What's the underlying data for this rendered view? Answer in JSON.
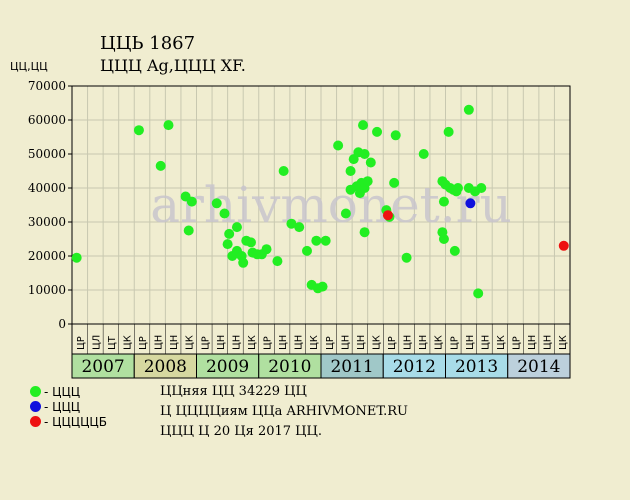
{
  "header": {
    "title": "ЦЦЬ 1867",
    "subtitle": "ЦЦЦ Ag,ЦЦЦ XF.",
    "y_unit": "ЦЦ,ЦЦ"
  },
  "watermark": "arhivmonet.ru",
  "legend": [
    {
      "label": "- ЦЦЦ",
      "color": "#22ee22"
    },
    {
      "label": "- ЦЦЦ",
      "color": "#1010dd"
    },
    {
      "label": "- ЦЦЦЦЦБ",
      "color": "#ee1111"
    }
  ],
  "footer": {
    "line1": "ЦЦняя ЦЦ 34229 ЦЦ",
    "line2": "Ц ЦЦЦЦиям ЦЦа ARHIVMONET.RU",
    "line3": "ЦЦЦ Ц 20 Ця 2017 ЦЦ."
  },
  "chart_data": {
    "type": "scatter",
    "ylim": [
      0,
      70000
    ],
    "yticks": [
      0,
      10000,
      20000,
      30000,
      40000,
      50000,
      60000,
      70000
    ],
    "grid": true,
    "x_slot_labels": [
      "ЦР",
      "ЦЛ",
      "ЦТ",
      "ЦК",
      "ЦР",
      "ЦН",
      "ЦН",
      "ЦК",
      "ЦР",
      "ЦН",
      "ЦН",
      "ЦК",
      "ЦР",
      "ЦН",
      "ЦН",
      "ЦК",
      "ЦР",
      "ЦН",
      "ЦН",
      "ЦК",
      "ЦР",
      "ЦН",
      "ЦН",
      "ЦК",
      "ЦР",
      "ЦН",
      "ЦН",
      "ЦК",
      "ЦР",
      "ЦН",
      "ЦН",
      "ЦК"
    ],
    "years": [
      {
        "label": "2007",
        "color": "#b0e0a0"
      },
      {
        "label": "2008",
        "color": "#d6d8a0"
      },
      {
        "label": "2009",
        "color": "#b0e0a0"
      },
      {
        "label": "2010",
        "color": "#b0e0a0"
      },
      {
        "label": "2011",
        "color": "#a0c8c8"
      },
      {
        "label": "2012",
        "color": "#a8dce8"
      },
      {
        "label": "2013",
        "color": "#a8dce8"
      },
      {
        "label": "2014",
        "color": "#bcd0dc"
      }
    ],
    "x_range": [
      0,
      32
    ],
    "series": [
      {
        "color": "#22ee22",
        "points": [
          [
            0.3,
            19500
          ],
          [
            4.3,
            57000
          ],
          [
            5.7,
            46500
          ],
          [
            6.2,
            58500
          ],
          [
            7.3,
            37500
          ],
          [
            7.5,
            27500
          ],
          [
            7.7,
            36000
          ],
          [
            9.3,
            35500
          ],
          [
            9.8,
            32500
          ],
          [
            10.0,
            23500
          ],
          [
            10.1,
            26500
          ],
          [
            10.3,
            20000
          ],
          [
            10.6,
            28500
          ],
          [
            10.6,
            21500
          ],
          [
            10.9,
            20000
          ],
          [
            11.0,
            18000
          ],
          [
            11.2,
            24500
          ],
          [
            11.5,
            24000
          ],
          [
            11.6,
            21000
          ],
          [
            11.9,
            20500
          ],
          [
            12.2,
            20500
          ],
          [
            12.5,
            22000
          ],
          [
            13.2,
            18500
          ],
          [
            13.6,
            45000
          ],
          [
            14.1,
            29500
          ],
          [
            14.6,
            28500
          ],
          [
            15.1,
            21500
          ],
          [
            15.4,
            11500
          ],
          [
            15.7,
            24500
          ],
          [
            15.8,
            10500
          ],
          [
            16.1,
            11000
          ],
          [
            16.3,
            24500
          ],
          [
            17.1,
            52500
          ],
          [
            17.6,
            32500
          ],
          [
            17.9,
            45000
          ],
          [
            17.9,
            39500
          ],
          [
            18.1,
            48500
          ],
          [
            18.3,
            40500
          ],
          [
            18.4,
            50500
          ],
          [
            18.5,
            38500
          ],
          [
            18.6,
            41500
          ],
          [
            18.7,
            58500
          ],
          [
            18.8,
            50000
          ],
          [
            18.8,
            40000
          ],
          [
            18.8,
            27000
          ],
          [
            19.0,
            42000
          ],
          [
            19.2,
            47500
          ],
          [
            19.6,
            56500
          ],
          [
            20.2,
            33500
          ],
          [
            20.4,
            31500
          ],
          [
            20.7,
            41500
          ],
          [
            20.8,
            55500
          ],
          [
            21.5,
            19500
          ],
          [
            22.6,
            50000
          ],
          [
            23.8,
            42000
          ],
          [
            23.8,
            27000
          ],
          [
            23.9,
            25000
          ],
          [
            23.9,
            36000
          ],
          [
            24.0,
            41000
          ],
          [
            24.2,
            56500
          ],
          [
            24.3,
            40000
          ],
          [
            24.5,
            39500
          ],
          [
            24.6,
            21500
          ],
          [
            24.7,
            39000
          ],
          [
            24.8,
            40000
          ],
          [
            25.5,
            63000
          ],
          [
            25.5,
            40000
          ],
          [
            25.9,
            39000
          ],
          [
            26.1,
            9000
          ],
          [
            26.3,
            40000
          ]
        ]
      },
      {
        "color": "#1010dd",
        "points": [
          [
            25.6,
            35500
          ]
        ]
      },
      {
        "color": "#ee1111",
        "points": [
          [
            20.3,
            32000
          ],
          [
            31.6,
            23000
          ]
        ]
      }
    ]
  }
}
